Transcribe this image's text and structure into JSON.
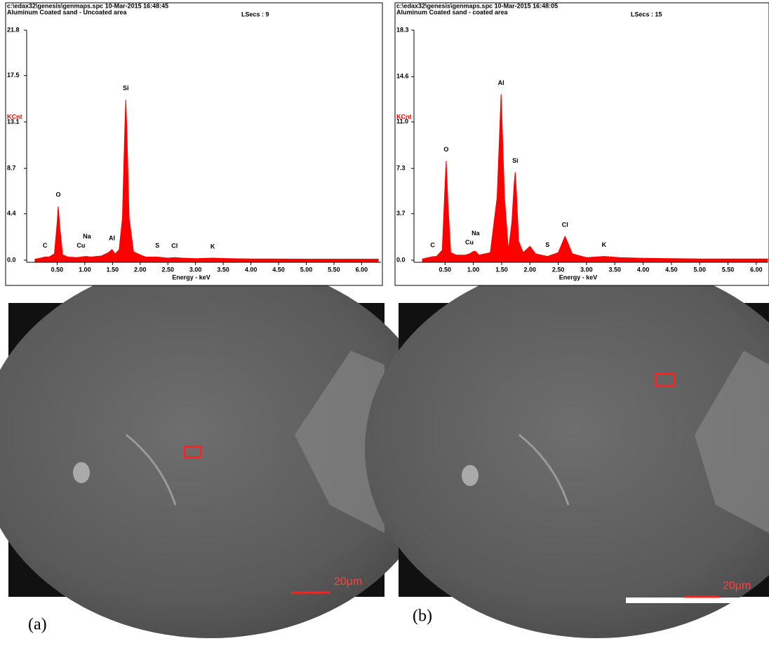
{
  "chart_data": [
    {
      "type": "area",
      "header": "c:\\edax32\\genesis\\genmaps.spc  10-Mar-2015 16:48:45",
      "title": "Aluminum Coated sand - Uncoated area",
      "note": "LSecs : 9",
      "ylabel": "KCnt",
      "xlabel": "Energy - keV",
      "color": "#ff0000",
      "x": [
        0.1,
        0.2,
        0.28,
        0.35,
        0.45,
        0.5,
        0.52,
        0.55,
        0.6,
        0.7,
        0.85,
        0.93,
        1.0,
        1.04,
        1.1,
        1.3,
        1.42,
        1.49,
        1.55,
        1.62,
        1.68,
        1.72,
        1.74,
        1.76,
        1.8,
        1.88,
        2.0,
        2.1,
        2.31,
        2.5,
        2.62,
        2.75,
        3.0,
        3.31,
        3.6,
        4.0,
        5.0,
        6.0,
        6.3
      ],
      "values": [
        0.1,
        0.2,
        0.3,
        0.3,
        0.6,
        3.5,
        5.1,
        3.0,
        0.5,
        0.3,
        0.25,
        0.3,
        0.35,
        0.35,
        0.3,
        0.4,
        0.7,
        1.0,
        0.6,
        1.0,
        4.0,
        12.0,
        15.2,
        12.0,
        4.0,
        0.8,
        0.5,
        0.3,
        0.3,
        0.2,
        0.25,
        0.2,
        0.15,
        0.2,
        0.15,
        0.12,
        0.1,
        0.1,
        0.1
      ],
      "xlim": [
        0,
        6.35
      ],
      "ylim": [
        0,
        21.8
      ],
      "xticks": [
        {
          "value": 0.5,
          "label": "0.50"
        },
        {
          "value": 1,
          "label": "1.00"
        },
        {
          "value": 1.5,
          "label": "1.50"
        },
        {
          "value": 2,
          "label": "2.00"
        },
        {
          "value": 2.5,
          "label": "2.50"
        },
        {
          "value": 3,
          "label": "3.00"
        },
        {
          "value": 3.5,
          "label": "3.50"
        },
        {
          "value": 4,
          "label": "4.00"
        },
        {
          "value": 4.5,
          "label": "4.50"
        },
        {
          "value": 5,
          "label": "5.00"
        },
        {
          "value": 5.5,
          "label": "5.50"
        },
        {
          "value": 6,
          "label": "6.00"
        }
      ],
      "yticks": [
        {
          "value": 0,
          "label": "0.0"
        },
        4.4,
        8.7,
        13.1,
        17.5,
        21.8
      ],
      "annotations": [
        {
          "text": "C",
          "x": 0.28
        },
        {
          "text": "Cu",
          "x": 0.93
        },
        {
          "text": "Na",
          "x": 1.04
        },
        {
          "text": "Al",
          "x": 1.49
        },
        {
          "text": "Si",
          "x": 1.74
        },
        {
          "text": "S",
          "x": 2.31
        },
        {
          "text": "Cl",
          "x": 2.62
        },
        {
          "text": "K",
          "x": 3.31
        },
        {
          "text": "O",
          "x": 0.52
        }
      ]
    },
    {
      "type": "area",
      "header": "c:\\edax32\\genesis\\genmaps.spc  10-Mar-2015 16:48:05",
      "title": "Aluminum Coated sand - coated area",
      "note": "LSecs : 15",
      "ylabel": "KCnt",
      "xlabel": "Energy - keV",
      "color": "#ff0000",
      "x": [
        0.1,
        0.2,
        0.28,
        0.35,
        0.45,
        0.5,
        0.52,
        0.55,
        0.6,
        0.7,
        0.85,
        0.93,
        1.0,
        1.04,
        1.1,
        1.3,
        1.42,
        1.49,
        1.55,
        1.62,
        1.68,
        1.72,
        1.74,
        1.76,
        1.8,
        1.88,
        2.0,
        2.1,
        2.31,
        2.5,
        2.62,
        2.75,
        3.0,
        3.31,
        3.6,
        4.0,
        5.0,
        6.0,
        6.2
      ],
      "values": [
        0.1,
        0.2,
        0.28,
        0.3,
        0.8,
        6.0,
        7.9,
        4.5,
        0.6,
        0.4,
        0.4,
        0.5,
        0.7,
        0.7,
        0.4,
        0.6,
        5.0,
        13.2,
        5.0,
        0.8,
        3.0,
        6.0,
        7.0,
        5.5,
        1.5,
        0.6,
        1.1,
        0.5,
        0.3,
        0.6,
        1.9,
        0.5,
        0.2,
        0.3,
        0.2,
        0.15,
        0.1,
        0.1,
        0.1
      ],
      "xlim": [
        0,
        6.2
      ],
      "ylim": [
        0,
        18.3
      ],
      "xticks": [
        {
          "value": 0.5,
          "label": "0.50"
        },
        {
          "value": 1,
          "label": "1.00"
        },
        {
          "value": 1.5,
          "label": "1.50"
        },
        {
          "value": 2,
          "label": "2.00"
        },
        {
          "value": 2.5,
          "label": "2.50"
        },
        {
          "value": 3,
          "label": "3.00"
        },
        {
          "value": 3.5,
          "label": "3.50"
        },
        {
          "value": 4,
          "label": "4.00"
        },
        {
          "value": 4.5,
          "label": "4.50"
        },
        {
          "value": 5,
          "label": "5.00"
        },
        {
          "value": 5.5,
          "label": "5.50"
        },
        {
          "value": 6,
          "label": "6.00"
        }
      ],
      "yticks": [
        {
          "value": 0,
          "label": "0.0"
        },
        3.7,
        7.3,
        {
          "value": 11,
          "label": "11.0"
        },
        14.6,
        18.3
      ],
      "annotations": [
        {
          "text": "C",
          "x": 0.28
        },
        {
          "text": "Cu",
          "x": 0.93
        },
        {
          "text": "Na",
          "x": 1.04
        },
        {
          "text": "O",
          "x": 0.52
        },
        {
          "text": "Al",
          "x": 1.49
        },
        {
          "text": "Si",
          "x": 1.74
        },
        {
          "text": "S",
          "x": 2.31
        },
        {
          "text": "Cl",
          "x": 2.62
        },
        {
          "text": "K",
          "x": 3.31
        }
      ]
    }
  ],
  "images": [
    {
      "scale_bar": "20μm"
    },
    {
      "scale_bar": "20μm"
    }
  ],
  "captions": [
    "(a)",
    "(b)"
  ]
}
